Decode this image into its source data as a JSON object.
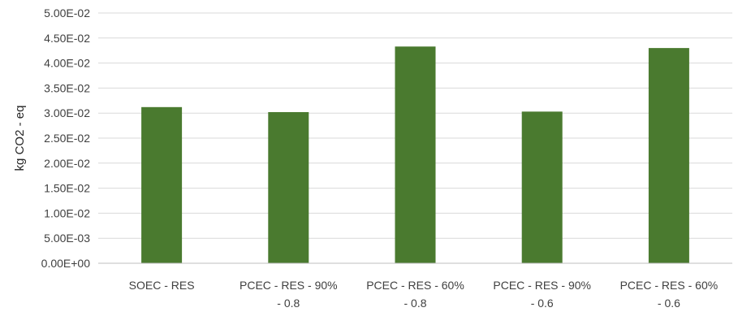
{
  "chart_data": {
    "type": "bar",
    "ylabel": "kg CO2 - eq",
    "xlabel": "",
    "ylim": [
      0,
      0.05
    ],
    "yticks": [
      "0.00E+00",
      "5.00E-03",
      "1.00E-02",
      "1.50E-02",
      "2.00E-02",
      "2.50E-02",
      "3.00E-02",
      "3.50E-02",
      "4.00E-02",
      "4.50E-02",
      "5.00E-02"
    ],
    "categories": [
      [
        "SOEC - RES"
      ],
      [
        "PCEC - RES - 90%",
        "- 0.8"
      ],
      [
        "PCEC - RES - 60%",
        "- 0.8"
      ],
      [
        "PCEC - RES - 90%",
        "- 0.6"
      ],
      [
        "PCEC - RES - 60%",
        "- 0.6"
      ]
    ],
    "values": [
      0.0312,
      0.0302,
      0.0433,
      0.0303,
      0.043
    ],
    "bar_color": "#4a7a2f",
    "grid": true
  }
}
